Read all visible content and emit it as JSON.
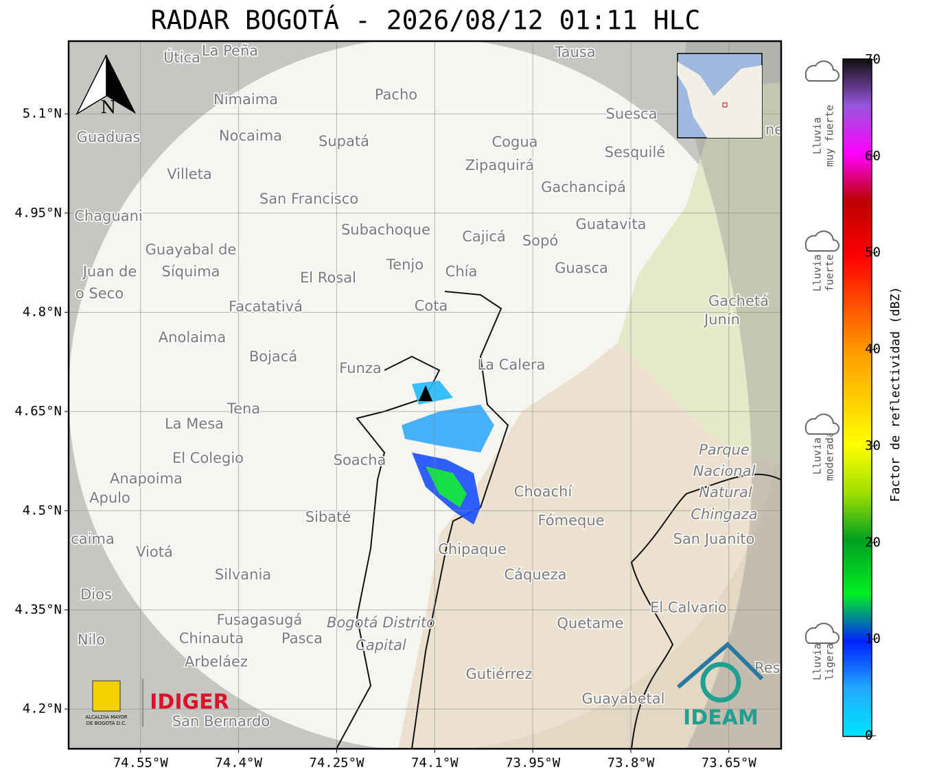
{
  "title": "RADAR BOGOTÁ - 2026/08/12 01:11 HLC",
  "map": {
    "xlim": [
      -74.66,
      -73.57
    ],
    "ylim": [
      4.14,
      5.21
    ],
    "lon_ticks": [
      {
        "value": -74.55,
        "label": "74.55°W"
      },
      {
        "value": -74.4,
        "label": "74.4°W"
      },
      {
        "value": -74.25,
        "label": "74.25°W"
      },
      {
        "value": -74.1,
        "label": "74.1°W"
      },
      {
        "value": -73.95,
        "label": "73.95°W"
      },
      {
        "value": -73.8,
        "label": "73.8°W"
      },
      {
        "value": -73.65,
        "label": "73.65°W"
      }
    ],
    "lat_ticks": [
      {
        "value": 5.1,
        "label": "5.1°N"
      },
      {
        "value": 4.95,
        "label": "4.95°N"
      },
      {
        "value": 4.8,
        "label": "4.8°N"
      },
      {
        "value": 4.65,
        "label": "4.65°N"
      },
      {
        "value": 4.5,
        "label": "4.5°N"
      },
      {
        "value": 4.35,
        "label": "4.35°N"
      },
      {
        "value": 4.2,
        "label": "4.2°N"
      }
    ],
    "north": "N"
  },
  "places": [
    "Útica",
    "La Peña",
    "Tausa",
    "Pacho",
    "Nimaima",
    "Guaduas",
    "Nocaima",
    "Supatá",
    "Cogua",
    "Suesca",
    "Sesquilé",
    "Villeta",
    "Zipaquirá",
    "Gachancipá",
    "San Francisco",
    "Chaguani",
    "Guatavita",
    "Subachoque",
    "Cajicá",
    "Sopó",
    "Guayabal de",
    "Síquima",
    "Juan de",
    "o Seco",
    "Tenjo",
    "Chía",
    "El Rosal",
    "Guasca",
    "Facatativá",
    "Cota",
    "Gachetá",
    "Junín",
    "Anolaima",
    "Bojacá",
    "Funza",
    "La Calera",
    "Tena",
    "La Mesa",
    "Parque",
    "Nacional",
    "Natural",
    "Chingaza",
    "El Colegio",
    "Soacha",
    "Anapoima",
    "Apulo",
    "Choachí",
    "Sibaté",
    "Fómeque",
    "San Juanito",
    "caima",
    "Viotá",
    "Chipaque",
    "Cáqueza",
    "Silvania",
    "Dios",
    "El Calvario",
    "Fusagasugá",
    "Bogotá Distrito",
    "Capital",
    "Quetame",
    "Nilo",
    "Chinauta",
    "Pasca",
    "Arbeláez",
    "Gutiérrez",
    "Guayabetal",
    "San Bernardo",
    "Res",
    "ne"
  ],
  "colorbar": {
    "label": "Factor de reflectividad (dBZ)",
    "range": [
      0,
      70
    ],
    "ticks": [
      0,
      10,
      20,
      30,
      40,
      50,
      60,
      70
    ],
    "categories": [
      [
        "Lluvia",
        "muy fuerte"
      ],
      [
        "Lluvia",
        "fuerte"
      ],
      [
        "Lluvia",
        "moderada"
      ],
      [
        "Lluvia",
        "ligera"
      ]
    ]
  },
  "logos": {
    "idiger": "IDIGER",
    "ideam": "IDEAM",
    "alcaldia": [
      "ALCALDÍA MAYOR",
      "DE BOGOTÁ D.C."
    ]
  }
}
